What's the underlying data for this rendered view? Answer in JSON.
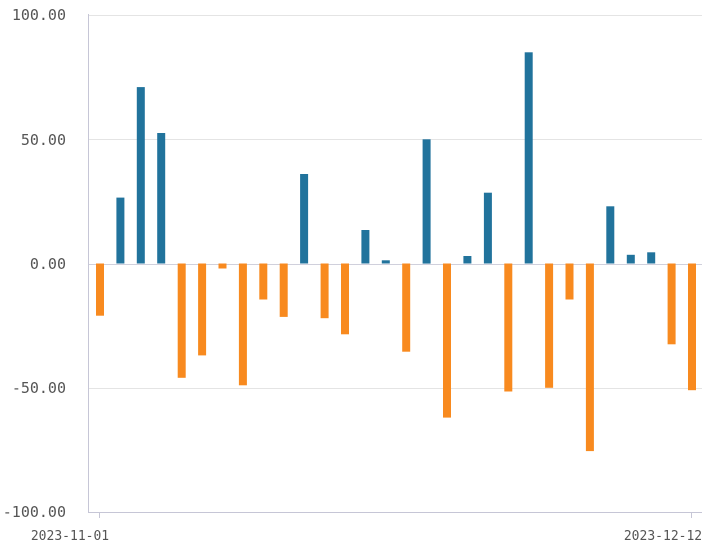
{
  "chart_data": {
    "type": "bar",
    "x_start_label": "2023-11-01",
    "x_end_label": "2023-12-12",
    "y_ticks": [
      "100.00",
      "50.00",
      "0.00",
      "-50.00",
      "-100.00"
    ],
    "ylim": [
      -100,
      100
    ],
    "grid": true,
    "values": [
      -21,
      26.5,
      71,
      52.5,
      -46,
      -37,
      -2,
      -49,
      -14.5,
      -21.5,
      36,
      -22,
      -28.5,
      13.5,
      1.3,
      -35.5,
      50,
      -62,
      3,
      28.5,
      -51.5,
      85,
      -50,
      -14.5,
      -75.5,
      23,
      3.5,
      4.5,
      -32.5,
      -51
    ],
    "colors": {
      "positive": "#21739c",
      "negative": "#f88a1f",
      "grid": "#e4e4e4",
      "axis": "#c6c6d6"
    }
  }
}
